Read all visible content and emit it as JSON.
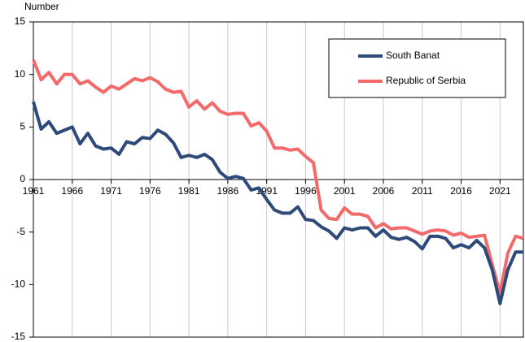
{
  "chart_data": {
    "type": "line",
    "y_label": "Number",
    "x": [
      1961,
      1962,
      1963,
      1964,
      1965,
      1966,
      1967,
      1968,
      1969,
      1970,
      1971,
      1972,
      1973,
      1974,
      1975,
      1976,
      1977,
      1978,
      1979,
      1980,
      1981,
      1982,
      1983,
      1984,
      1985,
      1986,
      1987,
      1988,
      1989,
      1990,
      1991,
      1992,
      1993,
      1994,
      1995,
      1996,
      1997,
      1998,
      1999,
      2000,
      2001,
      2002,
      2003,
      2004,
      2005,
      2006,
      2007,
      2008,
      2009,
      2010,
      2011,
      2012,
      2013,
      2014,
      2015,
      2016,
      2017,
      2018,
      2019,
      2020,
      2021,
      2022,
      2023,
      2024
    ],
    "series": [
      {
        "name": "South Banat",
        "color": "#2e4a7a",
        "values": [
          7.4,
          4.8,
          5.5,
          4.4,
          4.7,
          5.0,
          3.4,
          4.4,
          3.2,
          2.9,
          3.0,
          2.4,
          3.6,
          3.4,
          4.0,
          3.9,
          4.7,
          4.3,
          3.5,
          2.1,
          2.3,
          2.1,
          2.4,
          1.9,
          0.7,
          0.1,
          0.3,
          0.1,
          -1.0,
          -0.8,
          -1.9,
          -2.9,
          -3.2,
          -3.2,
          -2.6,
          -3.8,
          -3.9,
          -4.5,
          -4.9,
          -5.6,
          -4.6,
          -4.8,
          -4.6,
          -4.6,
          -5.4,
          -4.8,
          -5.5,
          -5.7,
          -5.5,
          -5.9,
          -6.6,
          -5.4,
          -5.4,
          -5.6,
          -6.5,
          -6.2,
          -6.5,
          -5.8,
          -6.5,
          -8.6,
          -11.8,
          -8.6,
          -6.9,
          -6.9
        ]
      },
      {
        "name": "Republic of Serbia",
        "color": "#f46a6a",
        "values": [
          11.4,
          9.5,
          10.2,
          9.1,
          10.0,
          10.0,
          9.1,
          9.4,
          8.8,
          8.3,
          8.9,
          8.6,
          9.1,
          9.6,
          9.4,
          9.7,
          9.3,
          8.6,
          8.3,
          8.4,
          6.9,
          7.5,
          6.7,
          7.3,
          6.5,
          6.2,
          6.3,
          6.3,
          5.1,
          5.4,
          4.6,
          3.0,
          3.0,
          2.8,
          2.9,
          2.2,
          1.6,
          -2.9,
          -3.7,
          -3.8,
          -2.7,
          -3.3,
          -3.3,
          -3.5,
          -4.6,
          -4.2,
          -4.7,
          -4.6,
          -4.6,
          -4.9,
          -5.2,
          -4.9,
          -4.8,
          -4.9,
          -5.3,
          -5.1,
          -5.5,
          -5.4,
          -5.3,
          -8.1,
          -10.8,
          -7.0,
          -5.4,
          -5.6
        ]
      }
    ],
    "xlim": [
      1961,
      2024
    ],
    "xticks": [
      1961,
      1966,
      1971,
      1976,
      1981,
      1986,
      1991,
      1996,
      2001,
      2006,
      2011,
      2016,
      2021
    ],
    "ylim": [
      -15,
      15
    ],
    "yticks": [
      -15,
      -10,
      -5,
      0,
      5,
      10,
      15
    ],
    "grid": "x",
    "legend": "top-right"
  }
}
